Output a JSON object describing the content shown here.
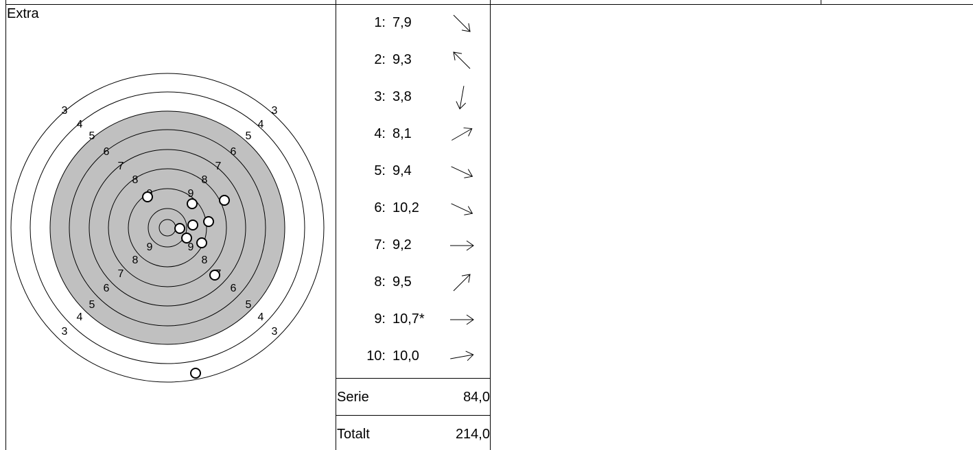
{
  "section_label": "Extra",
  "ring_labels": {
    "3": "3",
    "4": "4",
    "5": "5",
    "6": "6",
    "7": "7",
    "8": "8",
    "9": "9"
  },
  "shots": [
    {
      "num": "1:",
      "value": "7,9",
      "direction_deg": 45
    },
    {
      "num": "2:",
      "value": "9,3",
      "direction_deg": 225
    },
    {
      "num": "3:",
      "value": "3,8",
      "direction_deg": 100
    },
    {
      "num": "4:",
      "value": "8,1",
      "direction_deg": -30
    },
    {
      "num": "5:",
      "value": "9,4",
      "direction_deg": 25
    },
    {
      "num": "6:",
      "value": "10,2",
      "direction_deg": 25
    },
    {
      "num": "7:",
      "value": "9,2",
      "direction_deg": 0
    },
    {
      "num": "8:",
      "value": "9,5",
      "direction_deg": -45
    },
    {
      "num": "9:",
      "value": "10,7*",
      "direction_deg": 0
    },
    {
      "num": "10:",
      "value": "10,0",
      "direction_deg": -10
    }
  ],
  "summary": {
    "serie_label": "Serie",
    "serie_value": "84,0",
    "total_label": "Totalt",
    "total_value": "214,0"
  },
  "colors": {
    "black_field": "#c0c0c0",
    "ring_line": "#000000",
    "background": "#ffffff"
  }
}
